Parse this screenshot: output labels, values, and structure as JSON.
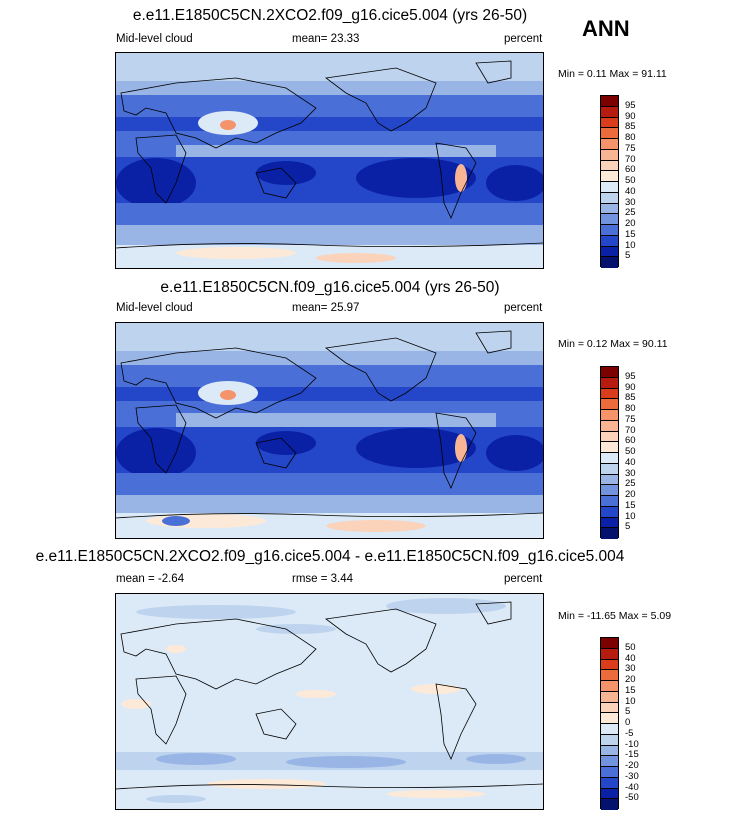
{
  "season": "ANN",
  "palette_abs": [
    "#7b0000",
    "#b51b0e",
    "#d93d1b",
    "#ec6b3c",
    "#f5936b",
    "#f8b593",
    "#fbd3bb",
    "#fde9d8",
    "#dceaf7",
    "#bed3ee",
    "#98b5e6",
    "#7294de",
    "#4a6fd6",
    "#2447c9",
    "#0a21a6",
    "#04116d"
  ],
  "palette_diff": [
    "#7b0000",
    "#b51b0e",
    "#d93d1b",
    "#ec6b3c",
    "#f5936b",
    "#f8b593",
    "#fbd3bb",
    "#fde9d8",
    "#dceaf7",
    "#bed3ee",
    "#98b5e6",
    "#7294de",
    "#4a6fd6",
    "#2447c9",
    "#0a21a6",
    "#04116d"
  ],
  "panels": [
    {
      "title": "e.e11.E1850C5CN.2XCO2.f09_g16.cice5.004 (yrs 26-50)",
      "left_label": "Mid-level cloud",
      "center_label": "mean=  23.33",
      "right_label": "percent",
      "minmax": "Min =   0.11 Max =  91.11",
      "levels": [
        "95",
        "90",
        "85",
        "80",
        "75",
        "70",
        "60",
        "50",
        "40",
        "30",
        "25",
        "20",
        "15",
        "10",
        "5"
      ]
    },
    {
      "title": "e.e11.E1850C5CN.f09_g16.cice5.004 (yrs 26-50)",
      "left_label": "Mid-level cloud",
      "center_label": "mean=  25.97",
      "right_label": "percent",
      "minmax": "Min =   0.12 Max =  90.11",
      "levels": [
        "95",
        "90",
        "85",
        "80",
        "75",
        "70",
        "60",
        "50",
        "40",
        "30",
        "25",
        "20",
        "15",
        "10",
        "5"
      ]
    },
    {
      "title": "e.e11.E1850C5CN.2XCO2.f09_g16.cice5.004 - e.e11.E1850C5CN.f09_g16.cice5.004",
      "left_label": "mean =  -2.64",
      "center_label": "rmse =   3.44",
      "right_label": "percent",
      "minmax": "Min = -11.65 Max =   5.09",
      "levels": [
        "50",
        "40",
        "30",
        "20",
        "15",
        "10",
        "5",
        "0",
        "-5",
        "-10",
        "-15",
        "-20",
        "-30",
        "-40",
        "-50"
      ]
    }
  ],
  "chart_data": [
    {
      "type": "heatmap",
      "title": "e.e11.E1850C5CN.2XCO2.f09_g16.cice5.004 (yrs 26-50)",
      "variable": "Mid-level cloud",
      "units": "percent",
      "mean": 23.33,
      "min": 0.11,
      "max": 91.11,
      "contour_levels": [
        5,
        10,
        15,
        20,
        25,
        30,
        40,
        50,
        60,
        70,
        75,
        80,
        85,
        90,
        95
      ]
    },
    {
      "type": "heatmap",
      "title": "e.e11.E1850C5CN.f09_g16.cice5.004 (yrs 26-50)",
      "variable": "Mid-level cloud",
      "units": "percent",
      "mean": 25.97,
      "min": 0.12,
      "max": 90.11,
      "contour_levels": [
        5,
        10,
        15,
        20,
        25,
        30,
        40,
        50,
        60,
        70,
        75,
        80,
        85,
        90,
        95
      ]
    },
    {
      "type": "heatmap",
      "title": "e.e11.E1850C5CN.2XCO2.f09_g16.cice5.004 - e.e11.E1850C5CN.f09_g16.cice5.004",
      "units": "percent",
      "mean": -2.64,
      "rmse": 3.44,
      "min": -11.65,
      "max": 5.09,
      "contour_levels": [
        -50,
        -40,
        -30,
        -20,
        -15,
        -10,
        -5,
        0,
        5,
        10,
        15,
        20,
        30,
        40,
        50
      ]
    }
  ]
}
